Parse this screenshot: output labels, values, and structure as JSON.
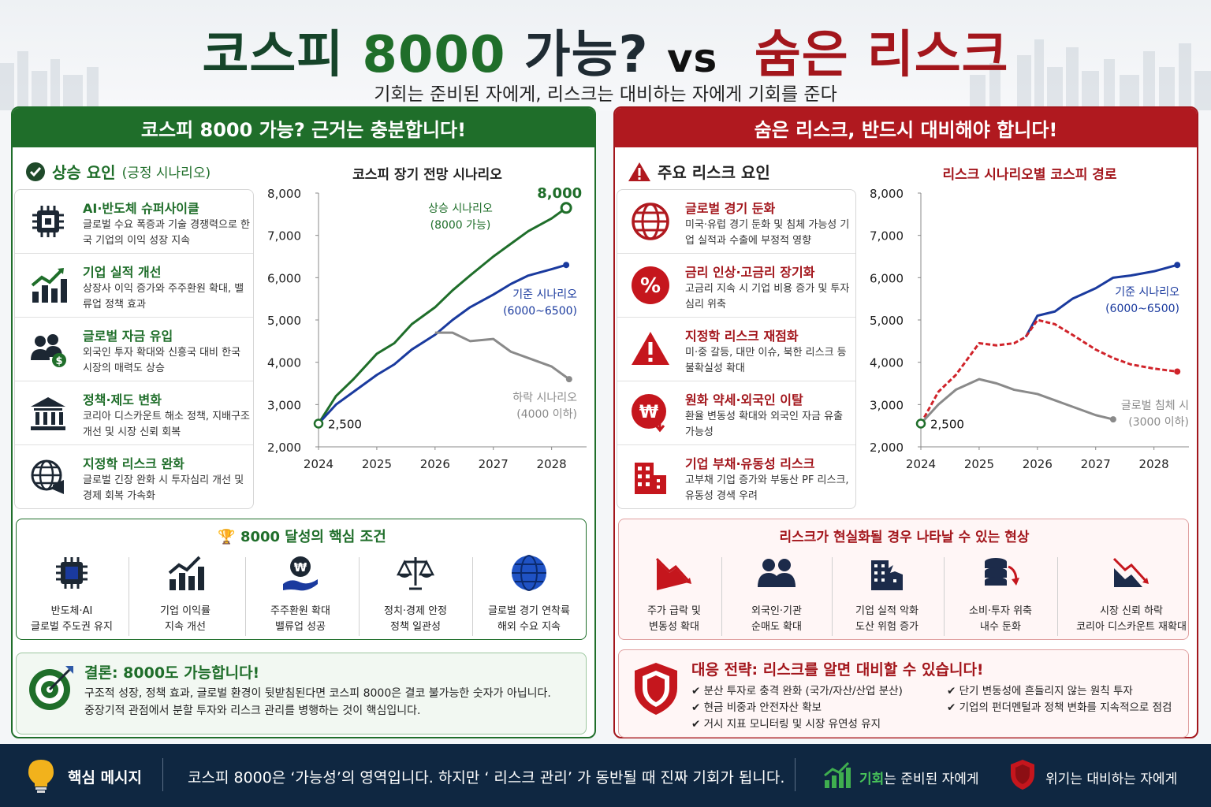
{
  "header": {
    "title_part1": "코스피",
    "title_part2": "8000",
    "title_part3": "가능?",
    "title_vs": "vs",
    "title_part4": "숨은 리스크",
    "subtitle": "기회는 준비된 자에게, 리스크는 대비하는 자에게 기회를 준다"
  },
  "colors": {
    "green": "#1f6e2a",
    "blue": "#1a3a9e",
    "gray": "#8a8a8a",
    "red": "#d0232a",
    "navy": "#0f2741"
  },
  "left": {
    "banner": "코스피 8000 가능? 근거는 충분합니다!",
    "section_title": "상승 요인",
    "section_sub": "(긍정 시나리오)",
    "factors": [
      {
        "icon": "chip-icon",
        "title": "AI·반도체 슈퍼사이클",
        "desc": "글로벌 수요 폭증과 기술 경쟁력으로 한국 기업의 이익 성장 지속"
      },
      {
        "icon": "growth-chart-icon",
        "title": "기업 실적 개선",
        "desc": "상장사 이익 증가와 주주환원 확대, 밸류업 정책 효과"
      },
      {
        "icon": "investors-icon",
        "title": "글로벌 자금 유입",
        "desc": "외국인 투자 확대와 신흥국 대비 한국 시장의 매력도 상승"
      },
      {
        "icon": "bank-icon",
        "title": "정책·제도 변화",
        "desc": "코리아 디스카운트 해소 정책, 지배구조 개선 및 시장 신뢰 회복"
      },
      {
        "icon": "globe-megaphone-icon",
        "title": "지정학 리스크 완화",
        "desc": "글로벌 긴장 완화 시 투자심리 개선 및 경제 회복 가속화"
      }
    ],
    "conditions": {
      "title": "8000 달성의 핵심 조건",
      "items": [
        {
          "icon": "chip-icon",
          "line1": "반도체·AI",
          "line2": "글로벌 주도권 유지"
        },
        {
          "icon": "growth-chart-icon",
          "line1": "기업 이익률",
          "line2": "지속 개선"
        },
        {
          "icon": "won-hand-icon",
          "line1": "주주환원 확대",
          "line2": "밸류업 성공"
        },
        {
          "icon": "scale-icon",
          "line1": "정치·경제 안정",
          "line2": "정책 일관성"
        },
        {
          "icon": "globe-icon",
          "line1": "글로벌 경기 연착륙",
          "line2": "해외 수요 지속"
        }
      ]
    },
    "conclusion": {
      "title": "결론: 8000도 가능합니다!",
      "line1": "구조적 성장, 정책 효과, 글로벌 환경이 뒷받침된다면 코스피 8000은 결코 불가능한 숫자가 아닙니다.",
      "line2": "중장기적 관점에서 분할 투자와 리스크 관리를 병행하는 것이 핵심입니다."
    }
  },
  "right": {
    "banner": "숨은 리스크, 반드시 대비해야 합니다!",
    "section_title": "주요 리스크 요인",
    "factors": [
      {
        "icon": "globe-icon",
        "title": "글로벌 경기 둔화",
        "desc": "미국·유럽 경기 둔화 및 침체 가능성 기업 실적과 수출에 부정적 영향"
      },
      {
        "icon": "percent-icon",
        "title": "금리 인상·고금리 장기화",
        "desc": "고금리 지속 시 기업 비용 증가 및 투자 심리 위축"
      },
      {
        "icon": "warning-icon",
        "title": "지정학 리스크 재점화",
        "desc": "미·중 갈등, 대만 이슈, 북한 리스크 등 불확실성 확대"
      },
      {
        "icon": "won-down-icon",
        "title": "원화 약세·외국인 이탈",
        "desc": "환율 변동성 확대와 외국인 자금 유출 가능성"
      },
      {
        "icon": "building-icon",
        "title": "기업 부채·유동성 리스크",
        "desc": "고부채 기업 증가와 부동산 PF 리스크, 유동성 경색 우려"
      }
    ],
    "consequences": {
      "title": "리스크가 현실화될 경우 나타날 수 있는 현상",
      "items": [
        {
          "icon": "falling-chart-icon",
          "line1": "주가 급락 및",
          "line2": "변동성 확대"
        },
        {
          "icon": "people-icon",
          "line1": "외국인·기관",
          "line2": "순매도 확대"
        },
        {
          "icon": "broken-building-icon",
          "line1": "기업 실적 악화",
          "line2": "도산 위험 증가"
        },
        {
          "icon": "coins-down-icon",
          "line1": "소비·투자 위축",
          "line2": "내수 둔화"
        },
        {
          "icon": "trend-down-icon",
          "line1": "시장 신뢰 하락",
          "line2": "코리아 디스카운트 재확대"
        }
      ]
    },
    "strategy": {
      "title": "대응 전략: 리스크를 알면 대비할 수 있습니다!",
      "items_left": [
        "분산 투자로 충격 완화 (국가/자산/산업 분산)",
        "현금 비중과 안전자산 확보",
        "거시 지표 모니터링 및 시장 유연성 유지"
      ],
      "items_right": [
        "단기 변동성에 흔들리지 않는 원칙 투자",
        "기업의 펀더멘털과 정책 변화를 지속적으로 점검"
      ]
    }
  },
  "footer": {
    "label": "핵심 메시지",
    "message": "코스피 8000은 ‘가능성’의 영역입니다. 하지만 ‘ 리스크 관리’ 가 동반될 때 진짜 기회가 됩니다.",
    "opportunity_strong": "기회",
    "opportunity_rest": "는 준비된 자에게",
    "crisis": "위기는 대비하는 자에게"
  },
  "chart_data": [
    {
      "type": "line",
      "title": "코스피 장기 전망 시나리오",
      "x_ticks": [
        "2024",
        "2025",
        "2026",
        "2027",
        "2028"
      ],
      "ylim": [
        2000,
        8000
      ],
      "y_ticks": [
        "2,000",
        "3,000",
        "4,000",
        "5,000",
        "6,000",
        "7,000",
        "8,000"
      ],
      "start_label": "2,500",
      "end_label": "8,000",
      "series": [
        {
          "key": "up",
          "name": "상승 시나리오",
          "sub": "(8000 가능)",
          "color": "#1f6e2a",
          "x": [
            2024,
            2024.3,
            2024.6,
            2025,
            2025.3,
            2025.6,
            2026,
            2026.3,
            2026.6,
            2027,
            2027.3,
            2027.6,
            2028,
            2028.25
          ],
          "y": [
            2550,
            3200,
            3600,
            4200,
            4450,
            4900,
            5300,
            5700,
            6050,
            6500,
            6800,
            7100,
            7400,
            7650
          ]
        },
        {
          "key": "base",
          "name": "기준 시나리오",
          "sub": "(6000~6500)",
          "color": "#1a3a9e",
          "x": [
            2024,
            2024.3,
            2024.6,
            2025,
            2025.3,
            2025.6,
            2026,
            2026.3,
            2026.6,
            2027,
            2027.3,
            2027.6,
            2028,
            2028.25
          ],
          "y": [
            2550,
            3000,
            3300,
            3700,
            3950,
            4300,
            4650,
            5000,
            5300,
            5600,
            5850,
            6050,
            6200,
            6300
          ]
        },
        {
          "key": "down",
          "name": "하락 시나리오",
          "sub": "(4000 이하)",
          "color": "#8a8a8a",
          "x": [
            2026,
            2026.3,
            2026.6,
            2027,
            2027.3,
            2027.6,
            2028,
            2028.3
          ],
          "y": [
            4700,
            4700,
            4500,
            4550,
            4250,
            4100,
            3900,
            3600
          ]
        }
      ]
    },
    {
      "type": "line",
      "title": "리스크 시나리오별 코스피 경로",
      "x_ticks": [
        "2024",
        "2025",
        "2026",
        "2027",
        "2028"
      ],
      "ylim": [
        2000,
        8000
      ],
      "y_ticks": [
        "2,000",
        "3,000",
        "4,000",
        "5,000",
        "6,000",
        "7,000",
        "8,000"
      ],
      "start_label": "2,500",
      "series": [
        {
          "key": "base",
          "name": "기준 시나리오",
          "sub": "(6000~6500)",
          "color": "#1a3a9e",
          "x": [
            2025.8,
            2026,
            2026.3,
            2026.6,
            2027,
            2027.3,
            2027.6,
            2028,
            2028.4
          ],
          "y": [
            4600,
            5100,
            5200,
            5500,
            5750,
            6000,
            6050,
            6150,
            6300
          ]
        },
        {
          "key": "risk",
          "name": "",
          "sub": "",
          "color": "#d0232a",
          "x": [
            2024,
            2024.3,
            2024.6,
            2025,
            2025.3,
            2025.6,
            2025.8,
            2026,
            2026.3,
            2026.6,
            2027,
            2027.3,
            2027.6,
            2028,
            2028.4
          ],
          "y": [
            2550,
            3300,
            3700,
            4450,
            4400,
            4450,
            4600,
            5000,
            4900,
            4650,
            4300,
            4100,
            3950,
            3850,
            3780
          ]
        },
        {
          "key": "recession",
          "name": "글로벌 침체 시",
          "sub": "(3000 이하)",
          "color": "#8a8a8a",
          "x": [
            2024,
            2024.3,
            2024.6,
            2025,
            2025.3,
            2025.6,
            2026,
            2026.3,
            2026.6,
            2027,
            2027.3
          ],
          "y": [
            2550,
            3000,
            3350,
            3600,
            3500,
            3350,
            3250,
            3100,
            2950,
            2750,
            2650
          ]
        }
      ]
    }
  ]
}
